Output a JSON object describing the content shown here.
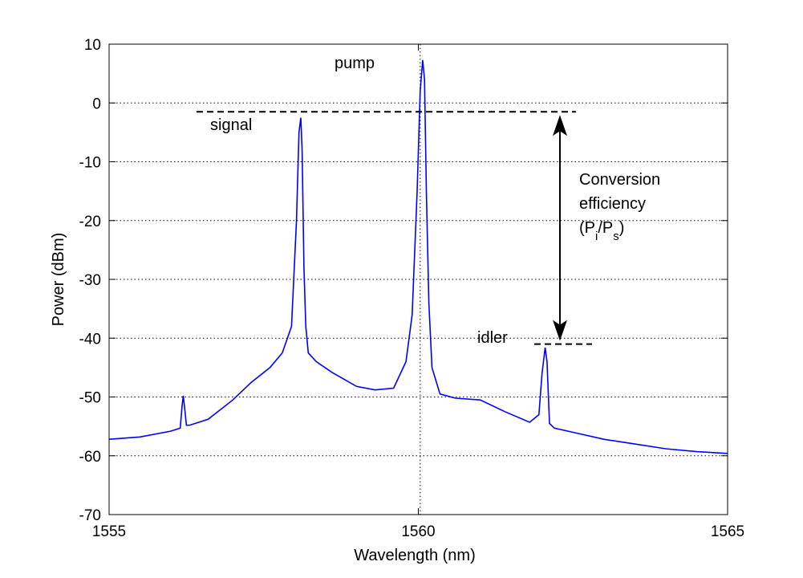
{
  "chart_data": {
    "type": "line",
    "xlabel": "Wavelength (nm)",
    "ylabel": "Power (dBm)",
    "xlim": [
      1555,
      1565
    ],
    "ylim": [
      -70,
      10
    ],
    "xticks": [
      1555,
      1560,
      1565
    ],
    "xtick_labels": [
      "1555",
      "1560",
      "1565"
    ],
    "yticks": [
      10,
      0,
      -10,
      -20,
      -30,
      -40,
      -50,
      -60,
      -70
    ],
    "ytick_labels": [
      "10",
      "0",
      "-10",
      "-20",
      "-30",
      "-40",
      "-50",
      "-60",
      "-70"
    ],
    "grid": "dotted",
    "series": [
      {
        "color": "#0000ff",
        "x": [
          1555.0,
          1555.5,
          1556.0,
          1556.15,
          1556.18,
          1556.2,
          1556.22,
          1556.25,
          1556.3,
          1556.6,
          1557.0,
          1557.3,
          1557.6,
          1557.8,
          1557.95,
          1558.03,
          1558.07,
          1558.1,
          1558.12,
          1558.15,
          1558.18,
          1558.22,
          1558.35,
          1558.6,
          1559.0,
          1559.3,
          1559.6,
          1559.8,
          1559.9,
          1559.98,
          1560.03,
          1560.07,
          1560.1,
          1560.13,
          1560.17,
          1560.22,
          1560.35,
          1560.6,
          1561.0,
          1561.4,
          1561.8,
          1561.95,
          1562.0,
          1562.05,
          1562.08,
          1562.12,
          1562.2,
          1562.5,
          1563.0,
          1563.5,
          1564.0,
          1564.5,
          1565.0
        ],
        "values": [
          -57.2,
          -56.8,
          -55.8,
          -55.3,
          -51.5,
          -49.8,
          -51.8,
          -54.8,
          -54.8,
          -53.8,
          -50.5,
          -47.5,
          -45.0,
          -42.5,
          -38.0,
          -20.0,
          -5.0,
          -2.5,
          -8.0,
          -28.0,
          -38.0,
          -42.5,
          -44.0,
          -45.8,
          -48.2,
          -48.8,
          -48.5,
          -44.0,
          -36.0,
          -15.0,
          2.0,
          7.3,
          4.0,
          -15.0,
          -34.0,
          -45.0,
          -49.5,
          -50.2,
          -50.5,
          -52.5,
          -54.3,
          -53.0,
          -46.0,
          -41.6,
          -44.0,
          -54.5,
          -55.3,
          -56.0,
          -57.2,
          -58.0,
          -58.8,
          -59.3,
          -59.6
        ]
      }
    ],
    "annotations": {
      "pump": "pump",
      "signal": "signal",
      "idler": "idler",
      "conversion_line1": "Conversion",
      "conversion_line2": "efficiency",
      "conversion_p1": "P",
      "conversion_sub1": "i",
      "conversion_p2": "P",
      "conversion_sub2": "s",
      "pump_marker_x": 1560.03,
      "signal_level": -1.5,
      "idler_level": -41.0
    }
  }
}
